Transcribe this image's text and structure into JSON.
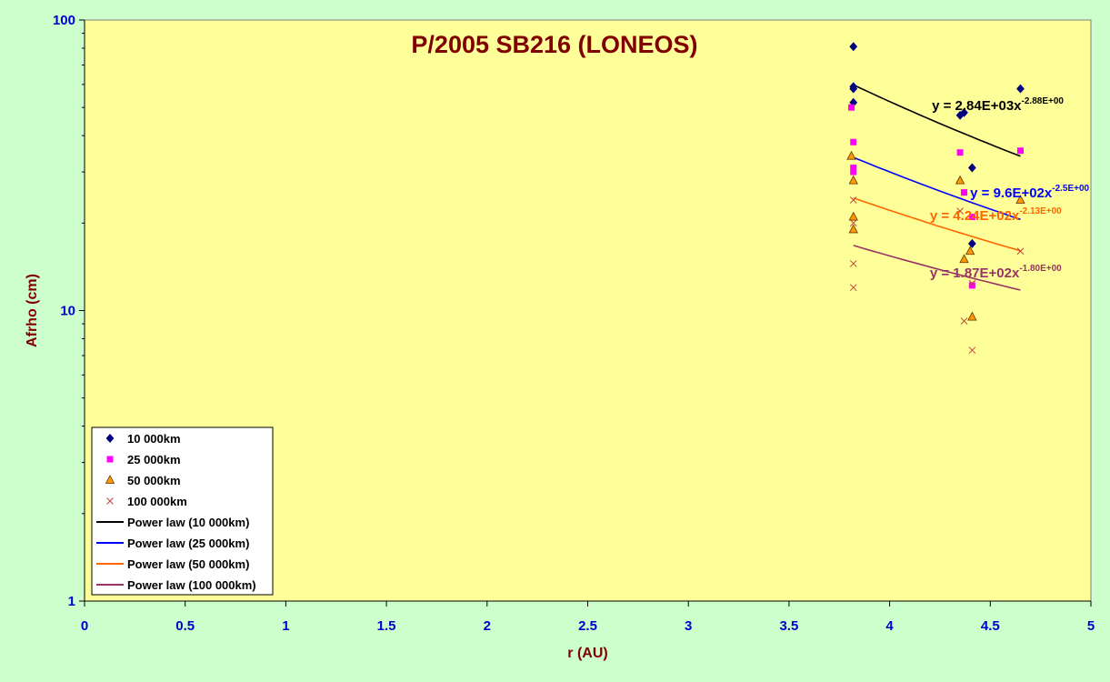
{
  "chart_data": {
    "type": "scatter",
    "title": "P/2005 SB216 (LONEOS)",
    "xlabel": "r (AU)",
    "ylabel": "Afrho (cm)",
    "xlim": [
      0,
      5
    ],
    "ylim": [
      1,
      100
    ],
    "yscale": "log",
    "x_ticks": [
      "0",
      "0.5",
      "1",
      "1.5",
      "2",
      "2.5",
      "3",
      "3.5",
      "4",
      "4.5",
      "5"
    ],
    "y_ticks": [
      "1",
      "10",
      "100"
    ],
    "grid": false,
    "legend_position": "bottom-left",
    "series": [
      {
        "name": "10 000km",
        "marker": "diamond",
        "color": "#000080",
        "points": [
          [
            3.82,
            81
          ],
          [
            3.82,
            59
          ],
          [
            3.82,
            58
          ],
          [
            3.82,
            52
          ],
          [
            4.35,
            47
          ],
          [
            4.37,
            48
          ],
          [
            4.41,
            31
          ],
          [
            4.41,
            17
          ],
          [
            4.65,
            58
          ]
        ]
      },
      {
        "name": "25 000km",
        "marker": "square",
        "color": "#ff00ff",
        "points": [
          [
            3.81,
            50
          ],
          [
            3.82,
            38
          ],
          [
            3.82,
            31
          ],
          [
            3.82,
            30
          ],
          [
            4.35,
            35
          ],
          [
            4.37,
            25.5
          ],
          [
            4.41,
            21
          ],
          [
            4.41,
            12.2
          ],
          [
            4.65,
            35.5
          ]
        ]
      },
      {
        "name": "50 000km",
        "marker": "triangle",
        "color": "#ff9900",
        "points": [
          [
            3.81,
            34
          ],
          [
            3.82,
            28
          ],
          [
            3.82,
            21
          ],
          [
            3.82,
            19
          ],
          [
            4.35,
            28
          ],
          [
            4.37,
            15
          ],
          [
            4.4,
            16
          ],
          [
            4.41,
            9.5
          ],
          [
            4.65,
            24
          ]
        ]
      },
      {
        "name": "100 000km",
        "marker": "x",
        "color": "#c04040",
        "points": [
          [
            3.82,
            24
          ],
          [
            3.82,
            20
          ],
          [
            3.82,
            14.5
          ],
          [
            3.82,
            12
          ],
          [
            4.35,
            22
          ],
          [
            4.37,
            9.2
          ],
          [
            4.41,
            7.3
          ],
          [
            4.41,
            12.4
          ],
          [
            4.65,
            16
          ]
        ]
      }
    ],
    "trendlines": [
      {
        "name": "Power law (10 000km)",
        "color": "#000000",
        "a": 2840,
        "b": -2.88,
        "x_range": [
          3.82,
          4.65
        ],
        "equation": "y = 2.84E+03x",
        "exponent": "-2.88E+00",
        "eq_anchor": [
          4.21,
          49
        ]
      },
      {
        "name": "Power law (25 000km)",
        "color": "#0000ff",
        "a": 960,
        "b": -2.5,
        "x_range": [
          3.82,
          4.65
        ],
        "equation": "y = 9.6E+02x",
        "exponent": "-2.5E+00",
        "eq_anchor": [
          4.4,
          24.5
        ]
      },
      {
        "name": "Power law (50 000km)",
        "color": "#ff6600",
        "a": 424,
        "b": -2.13,
        "x_range": [
          3.82,
          4.65
        ],
        "equation": "y = 4.24E+02x",
        "exponent": "-2.13E+00",
        "eq_anchor": [
          4.2,
          20.5
        ]
      },
      {
        "name": "Power law (100 000km)",
        "color": "#993366",
        "a": 187,
        "b": -1.8,
        "x_range": [
          3.82,
          4.65
        ],
        "equation": "y = 1.87E+02x",
        "exponent": "-1.80E+00",
        "eq_anchor": [
          4.2,
          13
        ]
      }
    ]
  }
}
